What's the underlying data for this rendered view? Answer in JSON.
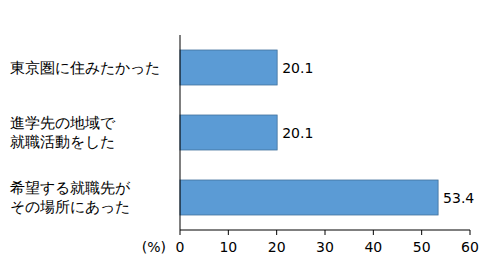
{
  "chart_data": {
    "type": "bar",
    "orientation": "horizontal",
    "categories": [
      "東京圏に住みたかった",
      "進学先の地域で\n就職活動をした",
      "希望する就職先が\nその場所にあった"
    ],
    "values": [
      20.1,
      20.1,
      53.4
    ],
    "color": "#5b9bd5",
    "x_label": "(%)",
    "xlim": [
      0,
      60
    ],
    "xticks": [
      0,
      10,
      20,
      30,
      40,
      50,
      60
    ],
    "grid": false,
    "data_labels": true
  }
}
